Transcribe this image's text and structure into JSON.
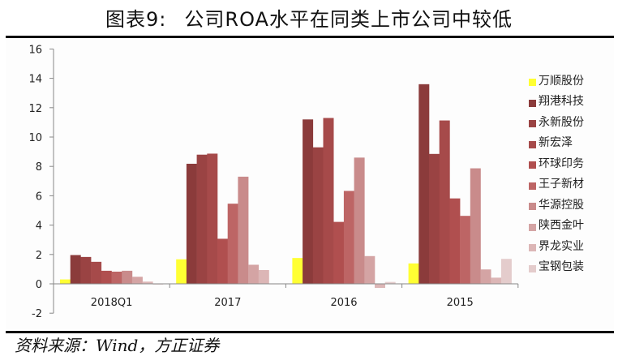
{
  "header": {
    "figure_number": "图表9:",
    "title": "公司ROA水平在同类上市公司中较低"
  },
  "footer": {
    "source": "资料来源：Wind，方正证券"
  },
  "chart_data": {
    "type": "bar",
    "title": "公司ROA水平在同类上市公司中较低",
    "xlabel": "",
    "ylabel": "",
    "ylim": [
      -2,
      16
    ],
    "yticks": [
      16,
      14,
      12,
      10,
      8,
      6,
      4,
      2,
      0,
      -2
    ],
    "grid": false,
    "legend_position": "right",
    "categories": [
      "2018Q1",
      "2017",
      "2016",
      "2015"
    ],
    "series": [
      {
        "name": "万顺股份",
        "color": "#ffff33",
        "values": [
          0.3,
          1.67,
          1.76,
          1.39
        ]
      },
      {
        "name": "翔港科技",
        "color": "#8b3b3b",
        "values": [
          1.96,
          8.18,
          11.2,
          13.6
        ]
      },
      {
        "name": "永新股份",
        "color": "#9a4343",
        "values": [
          1.83,
          8.8,
          9.3,
          8.85
        ]
      },
      {
        "name": "新宏泽",
        "color": "#a64a4a",
        "values": [
          1.5,
          8.87,
          11.3,
          11.13
        ]
      },
      {
        "name": "环球印务",
        "color": "#b04f4f",
        "values": [
          0.89,
          3.07,
          4.22,
          5.82
        ]
      },
      {
        "name": "王子新材",
        "color": "#bd6565",
        "values": [
          0.83,
          5.46,
          6.33,
          4.63
        ]
      },
      {
        "name": "华源控股",
        "color": "#c98b8b",
        "values": [
          0.89,
          7.3,
          8.6,
          7.87
        ]
      },
      {
        "name": "陕西金叶",
        "color": "#d4a4a4",
        "values": [
          0.48,
          1.3,
          1.89,
          0.98
        ]
      },
      {
        "name": "界龙实业",
        "color": "#dcb6b6",
        "values": [
          0.15,
          0.94,
          -0.28,
          0.42
        ]
      },
      {
        "name": "宝钢包装",
        "color": "#e4cccc",
        "values": [
          -0.05,
          0.0,
          0.13,
          1.7
        ]
      }
    ]
  }
}
